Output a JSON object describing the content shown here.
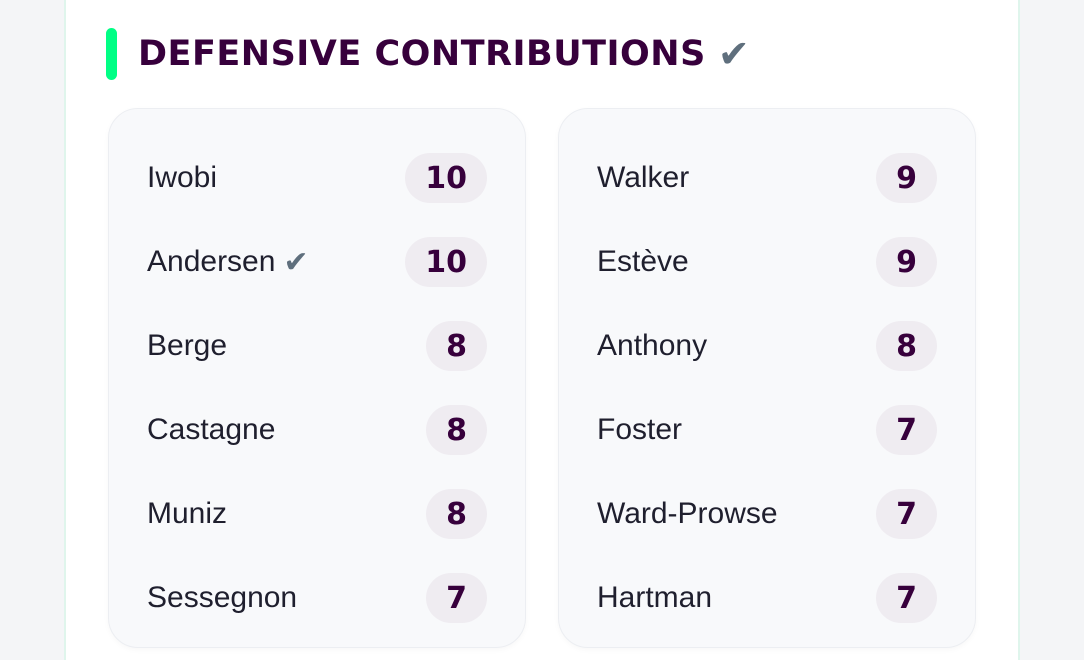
{
  "section": {
    "title": "DEFENSIVE CONTRIBUTIONS",
    "title_icon": "check-icon",
    "accent_color": "#00ff85",
    "title_color": "#37003c"
  },
  "left_column": [
    {
      "name": "Iwobi",
      "value": "10",
      "checked": false
    },
    {
      "name": "Andersen",
      "value": "10",
      "checked": true
    },
    {
      "name": "Berge",
      "value": "8",
      "checked": false
    },
    {
      "name": "Castagne",
      "value": "8",
      "checked": false
    },
    {
      "name": "Muniz",
      "value": "8",
      "checked": false
    },
    {
      "name": "Sessegnon",
      "value": "7",
      "checked": false
    }
  ],
  "right_column": [
    {
      "name": "Walker",
      "value": "9",
      "checked": false
    },
    {
      "name": "Estève",
      "value": "9",
      "checked": false
    },
    {
      "name": "Anthony",
      "value": "8",
      "checked": false
    },
    {
      "name": "Foster",
      "value": "7",
      "checked": false
    },
    {
      "name": "Ward-Prowse",
      "value": "7",
      "checked": false
    },
    {
      "name": "Hartman",
      "value": "7",
      "checked": false
    }
  ]
}
